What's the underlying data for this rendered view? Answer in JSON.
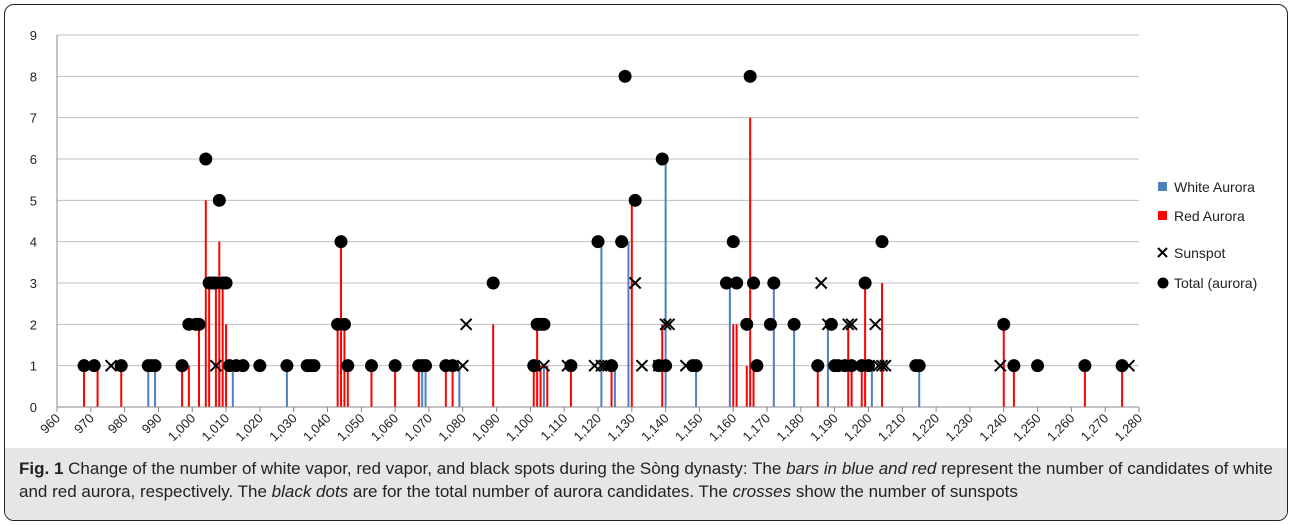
{
  "chart_data": {
    "type": "bar",
    "xlim": [
      960,
      1280
    ],
    "ylim": [
      0,
      9
    ],
    "x_ticks": [
      960,
      970,
      980,
      990,
      1000,
      1010,
      1020,
      1030,
      1040,
      1050,
      1060,
      1070,
      1080,
      1090,
      1100,
      1110,
      1120,
      1130,
      1140,
      1150,
      1160,
      1170,
      1180,
      1190,
      1200,
      1210,
      1220,
      1230,
      1240,
      1250,
      1260,
      1270,
      1280
    ],
    "x_tick_labels": [
      "960",
      "970",
      "980",
      "990",
      "1,000",
      "1,010",
      "1,020",
      "1,030",
      "1,040",
      "1,050",
      "1,060",
      "1,070",
      "1,080",
      "1,090",
      "1,100",
      "1,110",
      "1,120",
      "1,130",
      "1,140",
      "1,150",
      "1,160",
      "1,170",
      "1,180",
      "1,190",
      "1,200",
      "1,210",
      "1,220",
      "1,230",
      "1,240",
      "1,250",
      "1,260",
      "1,270",
      "1,280"
    ],
    "y_ticks": [
      0,
      1,
      2,
      3,
      4,
      5,
      6,
      7,
      8,
      9
    ],
    "grid": "horizontal",
    "legend_position": "right",
    "colors": {
      "white": "#4f81bd",
      "red": "#ff0000",
      "marker": "#000000",
      "axis": "#888888",
      "grid": "#bfbfbf"
    },
    "series": [
      {
        "name": "White Aurora",
        "kind": "bar",
        "x": [
          987,
          989,
          1008,
          1012,
          1028,
          1068,
          1069,
          1079,
          1103,
          1104,
          1121,
          1125,
          1129,
          1140,
          1149,
          1159,
          1172,
          1178,
          1188,
          1195,
          1201,
          1215
        ],
        "values": [
          1,
          1,
          1,
          1,
          1,
          1,
          1,
          1,
          1,
          1,
          4,
          1,
          4,
          6,
          1,
          3,
          3,
          2,
          2,
          1,
          1,
          1
        ]
      },
      {
        "name": "Red  Aurora",
        "kind": "bar",
        "x": [
          968,
          972,
          979,
          997,
          999,
          1002,
          1004,
          1005,
          1007,
          1008,
          1009,
          1010,
          1043,
          1044,
          1045,
          1046,
          1053,
          1060,
          1067,
          1075,
          1077,
          1089,
          1101,
          1102,
          1103,
          1105,
          1112,
          1124,
          1130,
          1139,
          1160,
          1161,
          1164,
          1165,
          1166,
          1185,
          1194,
          1195,
          1198,
          1199,
          1204,
          1240,
          1243,
          1264,
          1275
        ],
        "values": [
          1,
          1,
          1,
          1,
          1,
          2,
          5,
          3,
          3,
          4,
          3,
          2,
          2,
          4,
          2,
          1,
          1,
          1,
          1,
          1,
          1,
          2,
          1,
          2,
          1,
          1,
          1,
          1,
          5,
          2,
          2,
          2,
          1,
          7,
          1,
          1,
          2,
          1,
          1,
          3,
          3,
          2,
          1,
          1,
          1
        ]
      }
    ],
    "sunspot": {
      "name": "Sunspot",
      "x": [
        976,
        1007,
        1080,
        1081,
        1104,
        1111,
        1119,
        1121,
        1122,
        1123,
        1131,
        1133,
        1138,
        1140,
        1141,
        1146,
        1186,
        1188,
        1194,
        1195,
        1202,
        1203,
        1204,
        1205,
        1239,
        1277
      ],
      "values": [
        1,
        1,
        1,
        2,
        1,
        1,
        1,
        1,
        1,
        1,
        3,
        1,
        1,
        2,
        2,
        1,
        3,
        2,
        2,
        2,
        2,
        1,
        1,
        1,
        1,
        1
      ]
    },
    "total": {
      "name": "Total (aurora)",
      "x": [
        968,
        971,
        979,
        987,
        988,
        989,
        997,
        999,
        1001,
        1002,
        1004,
        1005,
        1006,
        1007,
        1008,
        1009,
        1010,
        1011,
        1013,
        1015,
        1020,
        1028,
        1034,
        1035,
        1036,
        1043,
        1044,
        1045,
        1046,
        1053,
        1060,
        1067,
        1068,
        1069,
        1075,
        1077,
        1089,
        1101,
        1102,
        1103,
        1104,
        1112,
        1120,
        1124,
        1127,
        1128,
        1131,
        1138,
        1139,
        1140,
        1148,
        1149,
        1158,
        1160,
        1161,
        1164,
        1165,
        1166,
        1167,
        1171,
        1172,
        1178,
        1185,
        1189,
        1190,
        1191,
        1193,
        1195,
        1198,
        1199,
        1200,
        1204,
        1214,
        1215,
        1240,
        1243,
        1250,
        1264,
        1275
      ],
      "values": [
        1,
        1,
        1,
        1,
        1,
        1,
        1,
        2,
        2,
        2,
        6,
        3,
        3,
        3,
        5,
        3,
        3,
        1,
        1,
        1,
        1,
        1,
        1,
        1,
        1,
        2,
        4,
        2,
        1,
        1,
        1,
        1,
        1,
        1,
        1,
        1,
        3,
        1,
        2,
        2,
        2,
        1,
        4,
        1,
        4,
        8,
        5,
        1,
        6,
        1,
        1,
        1,
        3,
        4,
        3,
        2,
        8,
        3,
        1,
        2,
        3,
        2,
        1,
        2,
        1,
        1,
        1,
        1,
        1,
        3,
        1,
        4,
        1,
        1,
        2,
        1,
        1,
        1,
        1
      ]
    }
  },
  "caption": {
    "label": "Fig. 1",
    "part1": "Change of the number of white vapor, red vapor, and black spots during the Sòng dynasty: The",
    "i1": "bars in blue and red",
    "part2": "represent the number of candidates of white and red aurora, respectively. The",
    "i2": "black dots",
    "part3": "are for the total number of aurora candidates. The",
    "i3": "crosses",
    "part4": "show the number of sunspots"
  }
}
